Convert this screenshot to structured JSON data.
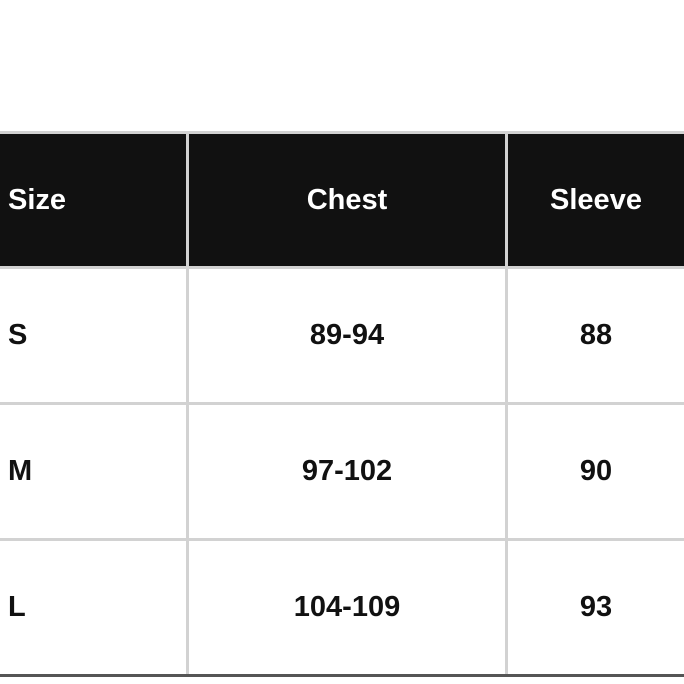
{
  "table": {
    "headers": [
      "Size",
      "Chest",
      "Sleeve"
    ],
    "rows": [
      [
        "S",
        "89-94",
        "88"
      ],
      [
        "M",
        "97-102",
        "90"
      ],
      [
        "L",
        "104-109",
        "93"
      ]
    ]
  },
  "colors": {
    "header_bg": "#111111",
    "header_text": "#ffffff",
    "grid": "#d2d2d2"
  }
}
